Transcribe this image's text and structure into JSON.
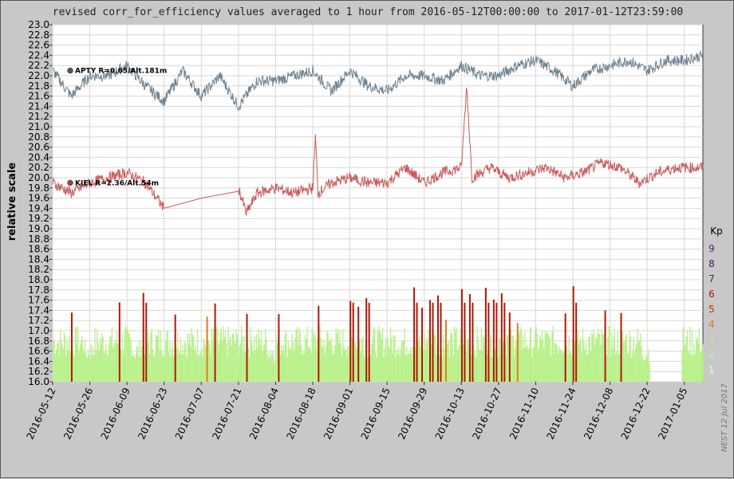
{
  "chart_data": {
    "type": "line",
    "title": "revised corr_for_efficiency values averaged to 1 hour from 2016-05-12T00:00:00 to 2017-01-12T23:59:00",
    "ylabel": "relative scale",
    "xlabel": "",
    "ylim": [
      16.0,
      23.0
    ],
    "yticks": [
      "16.0",
      "16.2",
      "16.4",
      "16.6",
      "16.8",
      "17.0",
      "17.2",
      "17.4",
      "17.6",
      "17.8",
      "18.0",
      "18.2",
      "18.4",
      "18.6",
      "18.8",
      "19.0",
      "19.2",
      "19.4",
      "19.6",
      "19.8",
      "20.0",
      "20.2",
      "20.4",
      "20.6",
      "20.8",
      "21.0",
      "21.2",
      "21.4",
      "21.6",
      "21.8",
      "22.0",
      "22.2",
      "22.4",
      "22.6",
      "22.8",
      "23.0"
    ],
    "xrange": [
      "2016-05-12",
      "2017-01-12"
    ],
    "xticks": [
      "2016-05-12",
      "2016-05-26",
      "2016-06-09",
      "2016-06-23",
      "2016-07-07",
      "2016-07-21",
      "2016-08-04",
      "2016-08-18",
      "2016-09-01",
      "2016-09-15",
      "2016-09-29",
      "2016-10-13",
      "2016-10-27",
      "2016-11-10",
      "2016-11-24",
      "2016-12-08",
      "2016-12-22",
      "2017-01-05"
    ],
    "grid": true,
    "series": [
      {
        "name": "APTY R=0.65/Alt.181m",
        "color": "#6e8290",
        "x": [
          "2016-05-12",
          "2016-05-19",
          "2016-05-26",
          "2016-06-02",
          "2016-06-09",
          "2016-06-16",
          "2016-06-23",
          "2016-06-30",
          "2016-07-07",
          "2016-07-14",
          "2016-07-21",
          "2016-07-28",
          "2016-08-04",
          "2016-08-11",
          "2016-08-18",
          "2016-08-25",
          "2016-09-01",
          "2016-09-08",
          "2016-09-15",
          "2016-09-22",
          "2016-09-29",
          "2016-10-06",
          "2016-10-13",
          "2016-10-20",
          "2016-10-27",
          "2016-11-03",
          "2016-11-10",
          "2016-11-17",
          "2016-11-24",
          "2016-12-01",
          "2016-12-08",
          "2016-12-15",
          "2016-12-22",
          "2016-12-29",
          "2017-01-05",
          "2017-01-12"
        ],
        "y": [
          22.1,
          21.6,
          22.0,
          22.0,
          22.2,
          21.8,
          21.5,
          22.1,
          21.6,
          22.0,
          21.4,
          21.9,
          21.9,
          22.0,
          22.1,
          21.7,
          22.1,
          21.8,
          21.7,
          22.0,
          22.0,
          21.9,
          22.2,
          22.0,
          22.0,
          22.2,
          22.3,
          22.1,
          21.8,
          22.1,
          22.2,
          22.3,
          22.1,
          22.3,
          22.3,
          22.4
        ]
      },
      {
        "name": "KIEL R=2.36/Alt.54m",
        "color": "#c85a5a",
        "x": [
          "2016-05-12",
          "2016-05-19",
          "2016-05-26",
          "2016-06-02",
          "2016-06-09",
          "2016-06-16",
          "2016-06-23",
          "2016-07-21",
          "2016-07-24",
          "2016-07-28",
          "2016-08-04",
          "2016-08-11",
          "2016-08-18",
          "2016-08-19",
          "2016-08-20",
          "2016-08-25",
          "2016-09-01",
          "2016-09-08",
          "2016-09-15",
          "2016-09-22",
          "2016-09-29",
          "2016-10-06",
          "2016-10-13",
          "2016-10-15",
          "2016-10-17",
          "2016-10-24",
          "2016-10-31",
          "2016-11-07",
          "2016-11-14",
          "2016-11-21",
          "2016-11-28",
          "2016-12-05",
          "2016-12-12",
          "2016-12-19",
          "2016-12-26",
          "2017-01-02",
          "2017-01-12"
        ],
        "y": [
          19.9,
          19.7,
          19.9,
          20.0,
          20.1,
          19.9,
          19.4,
          19.8,
          19.3,
          19.7,
          19.8,
          19.7,
          19.8,
          20.8,
          19.7,
          19.9,
          20.0,
          19.9,
          19.9,
          20.2,
          19.9,
          20.1,
          20.2,
          21.8,
          20.0,
          20.2,
          20.0,
          20.1,
          20.2,
          20.0,
          20.1,
          20.3,
          20.2,
          19.9,
          20.1,
          20.2,
          20.2
        ]
      }
    ],
    "kp_legend": {
      "title": "Kp",
      "levels": [
        "9",
        "8",
        "7",
        "6",
        "5",
        "4",
        "3",
        "2",
        "1"
      ],
      "colors": [
        "#5a1a6e",
        "#4a1060",
        "#5a1a6e",
        "#aa1a10",
        "#b83000",
        "#e07818",
        "#b8e890",
        "#c8eca0",
        "#e8f8d8"
      ]
    },
    "kp_series": {
      "note": "Kp index bars (low band) shown along bottom; values are Kp levels",
      "x": [
        "2016-05-12",
        "2016-05-15",
        "2016-05-18",
        "2016-05-21",
        "2016-05-24",
        "2016-05-27",
        "2016-05-30",
        "2016-06-02",
        "2016-06-05",
        "2016-06-08",
        "2016-06-11",
        "2016-06-14",
        "2016-06-17",
        "2016-06-20",
        "2016-06-23",
        "2016-06-26",
        "2016-06-29",
        "2016-07-02",
        "2016-07-05",
        "2016-07-08",
        "2016-07-11",
        "2016-07-14",
        "2016-07-17",
        "2016-07-20",
        "2016-07-23",
        "2016-07-26",
        "2016-07-29",
        "2016-08-01",
        "2016-08-04",
        "2016-08-07",
        "2016-08-10",
        "2016-08-13",
        "2016-08-16",
        "2016-08-19",
        "2016-08-22",
        "2016-08-25",
        "2016-08-28",
        "2016-08-31",
        "2016-09-03",
        "2016-09-06",
        "2016-09-09",
        "2016-09-12",
        "2016-09-15",
        "2016-09-18",
        "2016-09-21",
        "2016-09-24",
        "2016-09-27",
        "2016-09-30",
        "2016-10-03",
        "2016-10-06",
        "2016-10-09",
        "2016-10-12",
        "2016-10-15",
        "2016-10-18",
        "2016-10-21",
        "2016-10-24",
        "2016-10-27",
        "2016-10-30",
        "2016-11-02",
        "2016-11-05",
        "2016-11-08",
        "2016-11-11",
        "2016-11-14",
        "2016-11-17",
        "2016-11-20",
        "2016-11-23",
        "2016-11-26",
        "2016-11-29",
        "2016-12-02",
        "2016-12-05",
        "2016-12-08",
        "2016-12-11",
        "2016-12-14",
        "2016-12-17",
        "2016-12-20",
        "2016-12-23",
        "2016-12-26",
        "2016-12-29",
        "2017-01-01",
        "2017-01-04",
        "2017-01-07",
        "2017-01-10"
      ],
      "kp": [
        3,
        3,
        5,
        3,
        2,
        3,
        3,
        3,
        5,
        3,
        2,
        6,
        3,
        3,
        3,
        5,
        3,
        3,
        3,
        4,
        5,
        3,
        3,
        3,
        5,
        3,
        3,
        2,
        5,
        3,
        3,
        3,
        3,
        5,
        3,
        3,
        3,
        6,
        5,
        6,
        3,
        3,
        3,
        3,
        3,
        6,
        5,
        6,
        6,
        4,
        3,
        6,
        6,
        3,
        6,
        6,
        6,
        5,
        4,
        3,
        3,
        3,
        3,
        3,
        5,
        6,
        3,
        3,
        3,
        5,
        3,
        5,
        3,
        3,
        2,
        0,
        0,
        0,
        0,
        3,
        3,
        3
      ]
    }
  },
  "side_label": "Kp",
  "credit": "NEST  12 Jul 2017"
}
